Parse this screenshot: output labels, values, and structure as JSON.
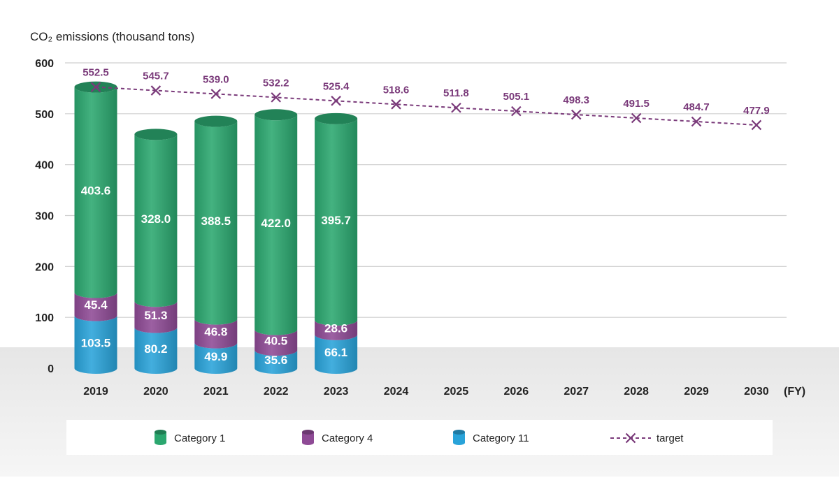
{
  "chart_data": {
    "type": "bar",
    "stacked": true,
    "ylabel": "CO₂ emissions (thousand tons)",
    "x_unit": "(FY)",
    "ylim": [
      0,
      600
    ],
    "yticks": [
      0,
      100,
      200,
      300,
      400,
      500,
      600
    ],
    "grid": true,
    "legend_position": "bottom",
    "categories": [
      "2019",
      "2020",
      "2021",
      "2022",
      "2023",
      "2024",
      "2025",
      "2026",
      "2027",
      "2028",
      "2029",
      "2030"
    ],
    "series": [
      {
        "name": "Category 11",
        "color": "#29a3d9",
        "values": [
          103.5,
          80.2,
          49.9,
          35.6,
          66.1,
          null,
          null,
          null,
          null,
          null,
          null,
          null
        ]
      },
      {
        "name": "Category 4",
        "color": "#8e4a95",
        "values": [
          45.4,
          51.3,
          46.8,
          40.5,
          28.6,
          null,
          null,
          null,
          null,
          null,
          null,
          null
        ]
      },
      {
        "name": "Category 1",
        "color": "#2ba76f",
        "values": [
          403.6,
          328.0,
          388.5,
          422.0,
          395.7,
          null,
          null,
          null,
          null,
          null,
          null,
          null
        ]
      }
    ],
    "target": {
      "name": "target",
      "color": "#7a3a7a",
      "values": [
        552.5,
        545.7,
        539.0,
        532.2,
        525.4,
        518.6,
        511.8,
        505.1,
        498.3,
        491.5,
        484.7,
        477.9
      ]
    },
    "legend": [
      "Category 1",
      "Category 4",
      "Category 11",
      "target"
    ]
  }
}
